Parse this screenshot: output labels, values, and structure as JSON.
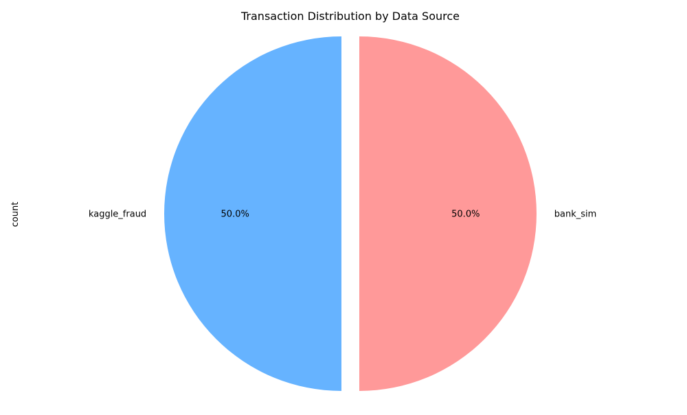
{
  "chart_data": {
    "type": "pie",
    "title": "Transaction Distribution by Data Source",
    "ylabel": "count",
    "slices": [
      {
        "label": "kaggle_fraud",
        "value": 50.0,
        "pct_label": "50.0%",
        "color": "#66b3ff",
        "explode": true
      },
      {
        "label": "bank_sim",
        "value": 50.0,
        "pct_label": "50.0%",
        "color": "#ff9999",
        "explode": true
      }
    ]
  }
}
